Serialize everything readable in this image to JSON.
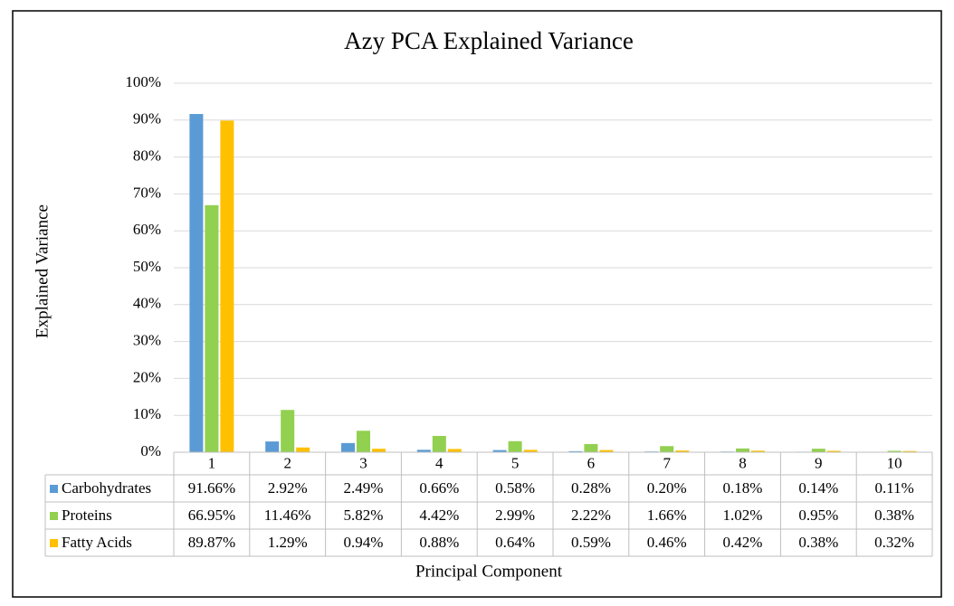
{
  "chart_data": {
    "type": "bar",
    "title": "Azy PCA Explained Variance",
    "x_label": "Principal Component",
    "y_label": "Explained Variance",
    "categories": [
      "1",
      "2",
      "3",
      "4",
      "5",
      "6",
      "7",
      "8",
      "9",
      "10"
    ],
    "series": [
      {
        "name": "Carbohydrates",
        "color": "#5b9bd5",
        "values": [
          91.66,
          2.92,
          2.49,
          0.66,
          0.58,
          0.28,
          0.2,
          0.18,
          0.14,
          0.11
        ],
        "value_labels": [
          "91.66%",
          "2.92%",
          "2.49%",
          "0.66%",
          "0.58%",
          "0.28%",
          "0.20%",
          "0.18%",
          "0.14%",
          "0.11%"
        ]
      },
      {
        "name": "Proteins",
        "color": "#92d050",
        "values": [
          66.95,
          11.46,
          5.82,
          4.42,
          2.99,
          2.22,
          1.66,
          1.02,
          0.95,
          0.38
        ],
        "value_labels": [
          "66.95%",
          "11.46%",
          "5.82%",
          "4.42%",
          "2.99%",
          "2.22%",
          "1.66%",
          "1.02%",
          "0.95%",
          "0.38%"
        ]
      },
      {
        "name": "Fatty Acids",
        "color": "#ffc000",
        "values": [
          89.87,
          1.29,
          0.94,
          0.88,
          0.64,
          0.59,
          0.46,
          0.42,
          0.38,
          0.32
        ],
        "value_labels": [
          "89.87%",
          "1.29%",
          "0.94%",
          "0.88%",
          "0.64%",
          "0.59%",
          "0.46%",
          "0.42%",
          "0.38%",
          "0.32%"
        ]
      }
    ],
    "ylim": [
      0,
      100
    ],
    "yticks": [
      {
        "value": 0,
        "label": "0%"
      },
      {
        "value": 10,
        "label": "10%"
      },
      {
        "value": 20,
        "label": "20%"
      },
      {
        "value": 30,
        "label": "30%"
      },
      {
        "value": 40,
        "label": "40%"
      },
      {
        "value": 50,
        "label": "50%"
      },
      {
        "value": 60,
        "label": "60%"
      },
      {
        "value": 70,
        "label": "70%"
      },
      {
        "value": 80,
        "label": "80%"
      },
      {
        "value": 90,
        "label": "90%"
      },
      {
        "value": 100,
        "label": "100%"
      }
    ],
    "grid": true
  }
}
